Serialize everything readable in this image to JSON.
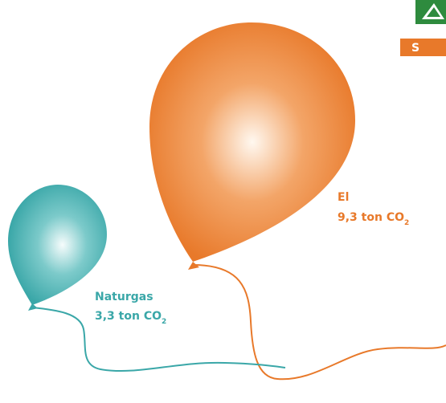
{
  "balloons": [
    {
      "label": "El",
      "amount": "9,3 ton CO",
      "subscript": "2"
    },
    {
      "label": "Naturgas",
      "amount": "3,3 ton CO",
      "subscript": "2"
    }
  ],
  "badge": "S"
}
